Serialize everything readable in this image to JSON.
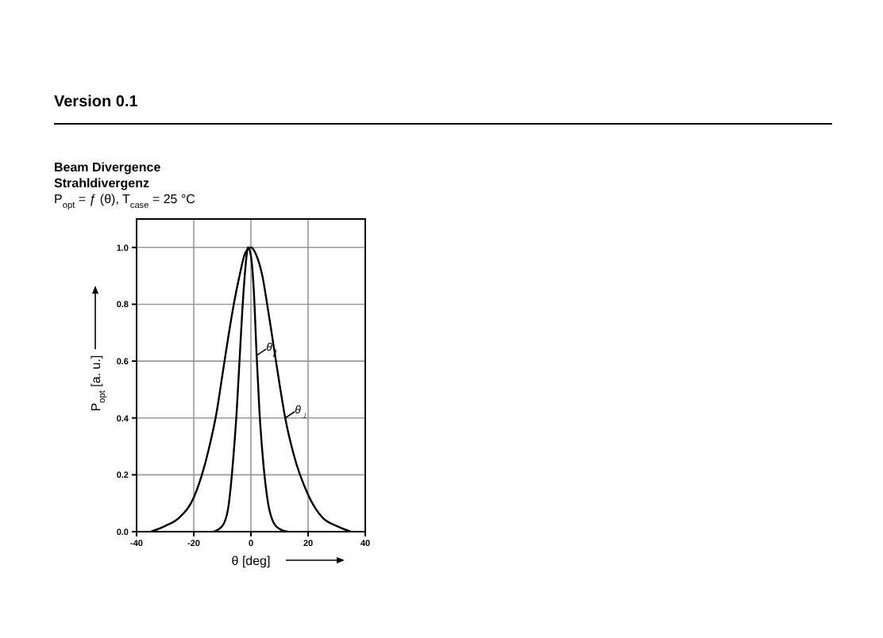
{
  "chart_data": {
    "type": "line",
    "title": "Beam Divergence",
    "subtitle": "Strahldivergenz",
    "annotations": [
      "Version 0.1",
      "P$_{opt}$ = ƒ (θ), T$_{case}$ = 25 °C"
    ],
    "xlabel": "θ [deg]",
    "ylabel": "P$_{opt}$ [a. u.]",
    "xlim": [
      -40,
      40
    ],
    "xticks": [
      -40,
      -20,
      0,
      20,
      40
    ],
    "ylim": [
      0,
      1.1
    ],
    "yticks": [
      {
        "value": 0,
        "label": "0.0"
      },
      {
        "value": 0.2,
        "label": "0.2"
      },
      {
        "value": 0.4,
        "label": "0.4"
      },
      {
        "value": 0.6,
        "label": "0.6"
      },
      {
        "value": 0.8,
        "label": "0.8"
      },
      {
        "value": 1,
        "label": "1.0"
      }
    ],
    "grid": true,
    "legend": "right",
    "marker": "none",
    "line_style": "solid",
    "series": [
      {
        "name": "θ$_{∥}$",
        "color": "#000000",
        "x": [
          -13,
          -10,
          -8,
          -6,
          -5,
          -4,
          -3,
          -2,
          -1,
          0,
          1,
          2,
          3,
          4,
          6,
          8,
          10,
          13
        ],
        "values": [
          0,
          0.02,
          0.08,
          0.28,
          0.42,
          0.6,
          0.78,
          0.92,
          1.0,
          0.97,
          0.85,
          0.62,
          0.42,
          0.28,
          0.1,
          0.03,
          0.01,
          0
        ]
      },
      {
        "name": "θ$_{⊥}$",
        "color": "#000000",
        "x": [
          -35,
          -30,
          -25,
          -20,
          -15,
          -12,
          -10,
          -8,
          -6,
          -4,
          -2,
          0,
          2,
          4,
          6,
          8,
          10,
          12,
          15,
          20,
          25,
          30,
          35
        ],
        "values": [
          0,
          0.02,
          0.05,
          0.12,
          0.28,
          0.42,
          0.55,
          0.68,
          0.8,
          0.9,
          0.98,
          1.0,
          0.97,
          0.9,
          0.78,
          0.65,
          0.52,
          0.4,
          0.27,
          0.13,
          0.05,
          0.02,
          0
        ]
      }
    ]
  }
}
